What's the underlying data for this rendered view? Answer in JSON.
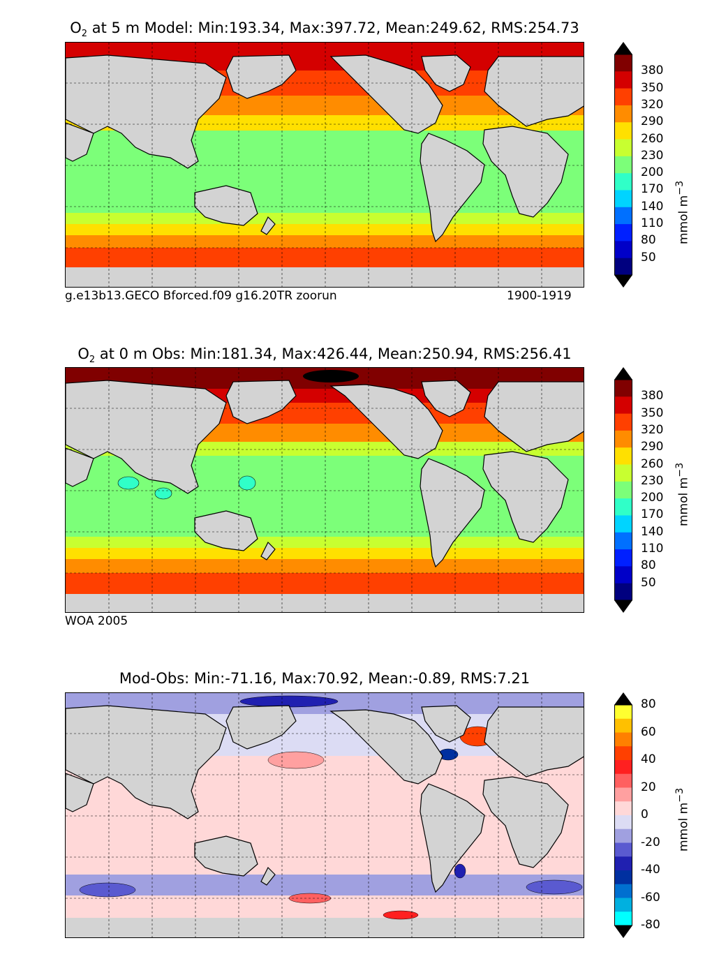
{
  "panels": [
    {
      "title_prefix": "O",
      "title_sub": "2",
      "title_rest": " at 5 m Model: Min:193.34, Max:397.72, Mean:249.62, RMS:254.73",
      "note_left": "g.e13b13.GECO Bforced.f09 g16.20TR zoorun",
      "note_right": "1900-1919",
      "colorbar": {
        "label": "mmol m",
        "label_sup": "−3",
        "ticks": [
          "380",
          "350",
          "320",
          "290",
          "260",
          "230",
          "200",
          "170",
          "140",
          "110",
          "80",
          "50"
        ],
        "colors": [
          "#800000",
          "#d40000",
          "#ff4000",
          "#ff8c00",
          "#ffe000",
          "#c8ff30",
          "#7cff79",
          "#30ffc8",
          "#00d4ff",
          "#0070ff",
          "#0020ff",
          "#0000c8",
          "#00007f"
        ]
      }
    },
    {
      "title_prefix": "O",
      "title_sub": "2",
      "title_rest": " at 0 m Obs: Min:181.34, Max:426.44, Mean:250.94, RMS:256.41",
      "note_left": "WOA 2005",
      "note_right": "",
      "colorbar": {
        "label": "mmol m",
        "label_sup": "−3",
        "ticks": [
          "380",
          "350",
          "320",
          "290",
          "260",
          "230",
          "200",
          "170",
          "140",
          "110",
          "80",
          "50"
        ],
        "colors": [
          "#800000",
          "#d40000",
          "#ff4000",
          "#ff8c00",
          "#ffe000",
          "#c8ff30",
          "#7cff79",
          "#30ffc8",
          "#00d4ff",
          "#0070ff",
          "#0020ff",
          "#0000c8",
          "#00007f"
        ]
      }
    },
    {
      "title_prefix": "",
      "title_sub": "",
      "title_rest": "Mod-Obs: Min:-71.16, Max:70.92, Mean:-0.89, RMS:7.21",
      "note_left": "",
      "note_right": "",
      "colorbar": {
        "label": "mmol m",
        "label_sup": "−3",
        "ticks": [
          "80",
          "60",
          "40",
          "20",
          "0",
          "-20",
          "-40",
          "-60",
          "-80"
        ],
        "colors": [
          "#ffff30",
          "#ffc000",
          "#ff8000",
          "#ff4000",
          "#ff2020",
          "#ff6060",
          "#ffa0a0",
          "#ffd8d8",
          "#dcdcf4",
          "#a0a0e0",
          "#5a5ad0",
          "#2020b0",
          "#0030a0",
          "#0070d0",
          "#00b0e0",
          "#00ffff"
        ]
      }
    }
  ],
  "chart_data": [
    {
      "type": "heatmap",
      "title": "O2 at 5 m Model: Min:193.34, Max:397.72, Mean:249.62, RMS:254.73",
      "variable": "O2",
      "depth": "5 m",
      "source": "Model",
      "min": 193.34,
      "max": 397.72,
      "mean": 249.62,
      "rms": 254.73,
      "units": "mmol m-3",
      "levels": [
        50,
        80,
        110,
        140,
        170,
        200,
        230,
        260,
        290,
        320,
        350,
        380
      ],
      "case": "g.e13b13.GECO Bforced.f09 g16.20TR zoorun",
      "period": "1900-1919",
      "grid": true
    },
    {
      "type": "heatmap",
      "title": "O2 at 0 m Obs: Min:181.34, Max:426.44, Mean:250.94, RMS:256.41",
      "variable": "O2",
      "depth": "0 m",
      "source": "Obs",
      "min": 181.34,
      "max": 426.44,
      "mean": 250.94,
      "rms": 256.41,
      "units": "mmol m-3",
      "levels": [
        50,
        80,
        110,
        140,
        170,
        200,
        230,
        260,
        290,
        320,
        350,
        380
      ],
      "dataset": "WOA 2005",
      "grid": true
    },
    {
      "type": "heatmap",
      "title": "Mod-Obs: Min:-71.16, Max:70.92, Mean:-0.89, RMS:7.21",
      "source": "Mod-Obs",
      "min": -71.16,
      "max": 70.92,
      "mean": -0.89,
      "rms": 7.21,
      "units": "mmol m-3",
      "levels": [
        -80,
        -60,
        -40,
        -20,
        0,
        20,
        40,
        60,
        80
      ],
      "grid": true
    }
  ]
}
